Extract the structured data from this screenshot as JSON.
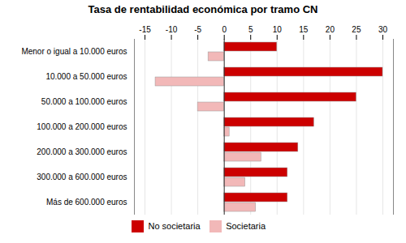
{
  "chart_data": {
    "type": "bar",
    "orientation": "horizontal",
    "title": "Tasa de rentabilidad económica por tramo CN",
    "categories": [
      "Menor o igual a 10.000 euros",
      "10.000 a 50.000 euros",
      "50.000 a 100.000 euros",
      "100.000 a 200.000 euros",
      "200.000 a 300.000 euros",
      "300.000 a 600.000 euros",
      "Más de 600.000 euros"
    ],
    "series": [
      {
        "name": "No societaria",
        "color": "#cc0000",
        "values": [
          10,
          30,
          25,
          17,
          14,
          12,
          12
        ]
      },
      {
        "name": "Societaria",
        "color": "#f2b8b8",
        "values": [
          -3,
          -13,
          -5,
          1,
          7,
          4,
          6
        ]
      }
    ],
    "xlim": [
      -17,
      32
    ],
    "xticks": [
      -15,
      -10,
      -5,
      0,
      5,
      10,
      15,
      20,
      25,
      30
    ],
    "grid": true,
    "legend": "bottom"
  }
}
